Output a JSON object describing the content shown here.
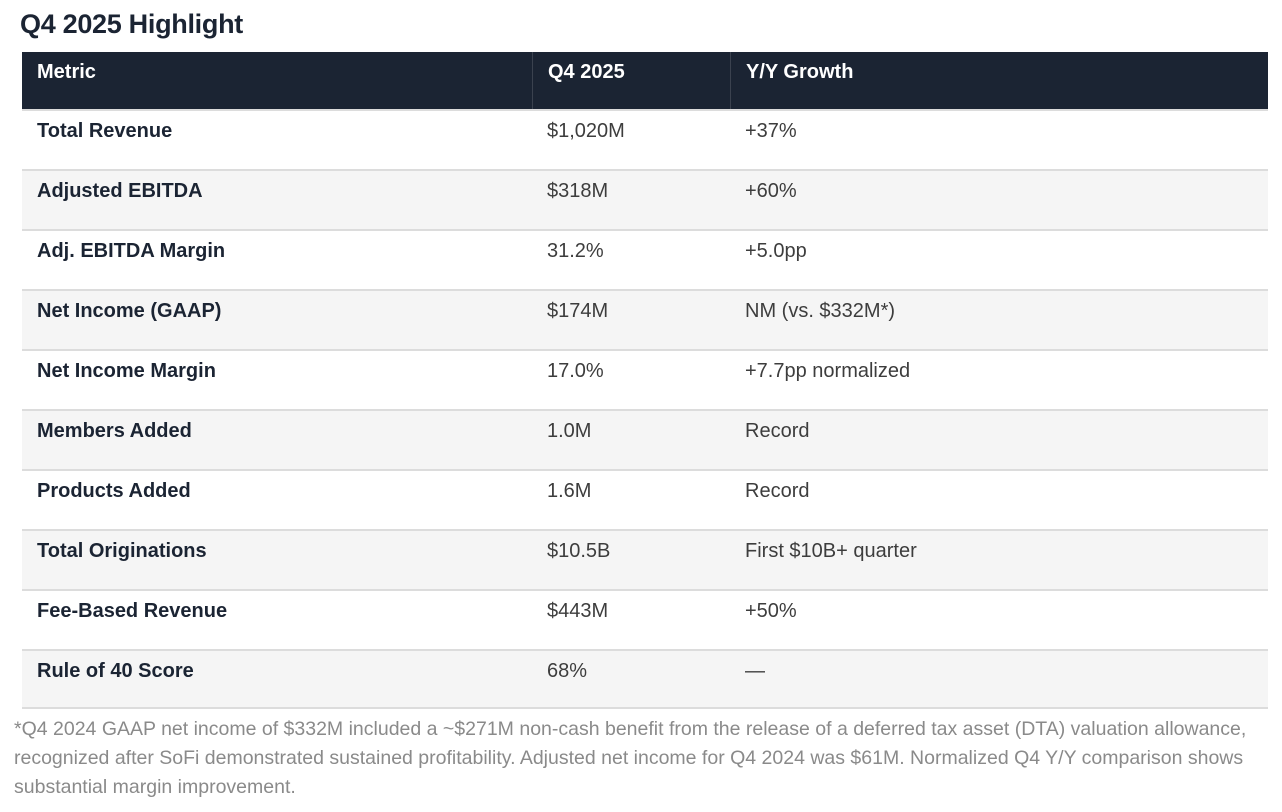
{
  "title": "Q4 2025 Highlight",
  "table": {
    "columns": [
      {
        "key": "metric",
        "label": "Metric"
      },
      {
        "key": "value",
        "label": "Q4 2025"
      },
      {
        "key": "growth",
        "label": "Y/Y Growth"
      }
    ],
    "rows": [
      {
        "metric": "Total Revenue",
        "value": "$1,020M",
        "growth": "+37%"
      },
      {
        "metric": "Adjusted EBITDA",
        "value": "$318M",
        "growth": "+60%"
      },
      {
        "metric": "Adj. EBITDA Margin",
        "value": "31.2%",
        "growth": "+5.0pp"
      },
      {
        "metric": "Net Income (GAAP)",
        "value": "$174M",
        "growth": "NM (vs. $332M*)"
      },
      {
        "metric": "Net Income Margin",
        "value": "17.0%",
        "growth": "+7.7pp normalized"
      },
      {
        "metric": "Members Added",
        "value": "1.0M",
        "growth": "Record"
      },
      {
        "metric": "Products Added",
        "value": "1.6M",
        "growth": "Record"
      },
      {
        "metric": "Total Originations",
        "value": "$10.5B",
        "growth": "First $10B+ quarter"
      },
      {
        "metric": "Fee-Based Revenue",
        "value": "$443M",
        "growth": "+50%"
      },
      {
        "metric": "Rule of 40 Score",
        "value": "68%",
        "growth": "—"
      }
    ]
  },
  "footnote": "*Q4 2024 GAAP net income of $332M included a ~$271M non-cash benefit from the release of a deferred tax asset (DTA) valuation allowance, recognized after SoFi demonstrated sustained profitability. Adjusted net income for Q4 2024 was $61M. Normalized Q4 Y/Y comparison shows substantial margin improvement.",
  "colors": {
    "header_bg": "#1b2433",
    "header_text": "#ffffff",
    "metric_text": "#1b2433",
    "value_text": "#3d3d3d",
    "row_alt_bg": "#f5f5f5",
    "row_border": "#dcdcdc",
    "footnote_text": "#8a8a8a",
    "title_text": "#1b2433"
  }
}
